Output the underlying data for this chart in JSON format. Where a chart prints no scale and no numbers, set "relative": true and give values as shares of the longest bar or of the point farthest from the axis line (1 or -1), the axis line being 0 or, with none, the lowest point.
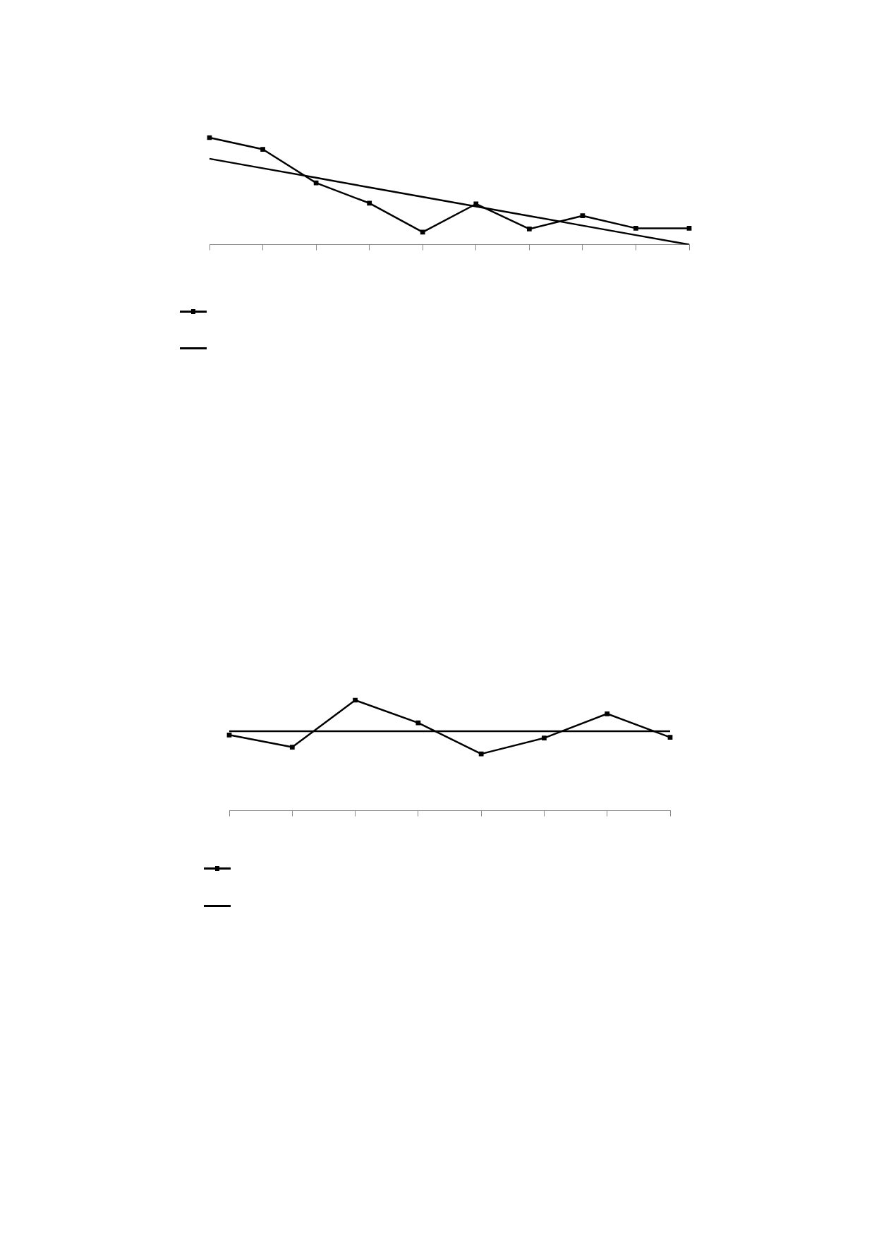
{
  "chart_data": [
    {
      "type": "line",
      "relative": true,
      "categories": [
        null,
        null,
        null,
        null,
        null,
        null,
        null,
        null,
        null,
        null
      ],
      "grid": false,
      "series": [
        {
          "color": "#000000",
          "marker": "square",
          "values": [
            1,
            0.891,
            0.577,
            0.387,
            0.117,
            0.38,
            0.146,
            0.27,
            0.153,
            0.153
          ]
        },
        {
          "type": "line",
          "color": "#000000",
          "marker": "none",
          "values": [
            0.803,
            0.714,
            0.625,
            0.535,
            0.446,
            0.357,
            0.268,
            0.178,
            0.089,
            0
          ]
        }
      ]
    },
    {
      "type": "line",
      "relative": true,
      "categories": [
        null,
        null,
        null,
        null,
        null,
        null,
        null,
        null
      ],
      "grid": false,
      "series": [
        {
          "color": "#000000",
          "marker": "square",
          "values": [
            0.685,
            0.575,
            1,
            0.795,
            0.514,
            0.658,
            0.877,
            0.664
          ]
        },
        {
          "type": "line",
          "color": "#000000",
          "marker": "none",
          "values": [
            0.719,
            0.719,
            0.719,
            0.719,
            0.719,
            0.719,
            0.719,
            0.719
          ]
        }
      ]
    }
  ]
}
